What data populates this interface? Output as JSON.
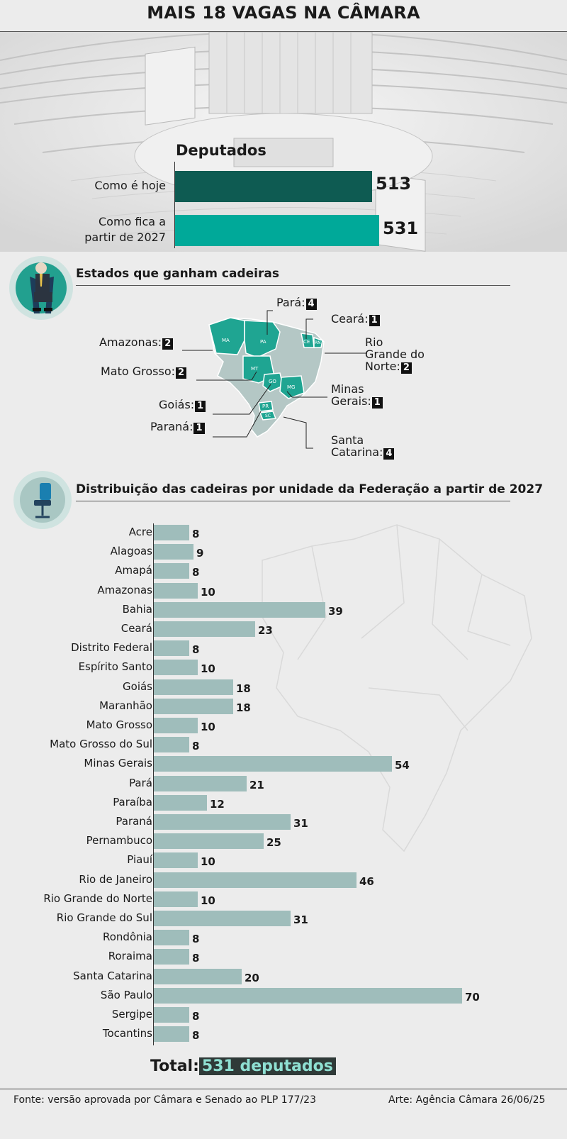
{
  "header": {
    "title": "MAIS 18 VAGAS NA CÂMARA"
  },
  "summary": {
    "heading": "Deputados",
    "rows": [
      {
        "label": "Como é hoje",
        "value": 513,
        "color": "#0e5b52"
      },
      {
        "label": "Como fica a partir de 2027",
        "label_line1": "Como fica a",
        "label_line2": "partir de 2027",
        "value": 531,
        "color": "#00a999"
      }
    ]
  },
  "gains": {
    "title": "Estados que ganham cadeiras",
    "accent": "#1fa592",
    "items": [
      {
        "state": "Pará:",
        "gain": "4"
      },
      {
        "state": "Ceará:",
        "gain": "1"
      },
      {
        "state": "Amazonas:",
        "gain": "2"
      },
      {
        "state_line1": "Rio",
        "state_line2": "Grande do",
        "state_line3": "Norte:",
        "gain": "2"
      },
      {
        "state": "Mato Grosso:",
        "gain": "2"
      },
      {
        "state_line1": "Minas",
        "state_line2": "Gerais:",
        "gain": "1"
      },
      {
        "state": "Goiás:",
        "gain": "1"
      },
      {
        "state": "Paraná:",
        "gain": "1"
      },
      {
        "state_line1": "Santa",
        "state_line2": "Catarina:",
        "gain": "4"
      }
    ],
    "map_abbrevs": [
      "MA",
      "PA",
      "CE",
      "RN",
      "MT",
      "GO",
      "MG",
      "PR",
      "SC"
    ]
  },
  "distribution": {
    "title": "Distribuição das cadeiras por unidade da Federação a partir de 2027"
  },
  "chart_data": {
    "type": "bar",
    "orientation": "horizontal",
    "title": "Distribuição das cadeiras por unidade da Federação a partir de 2027",
    "categories": [
      "Acre",
      "Alagoas",
      "Amapá",
      "Amazonas",
      "Bahia",
      "Ceará",
      "Distrito Federal",
      "Espírito Santo",
      "Goiás",
      "Maranhão",
      "Mato Grosso",
      "Mato Grosso do Sul",
      "Minas Gerais",
      "Pará",
      "Paraíba",
      "Paraná",
      "Pernambuco",
      "Piauí",
      "Rio de Janeiro",
      "Rio Grande do Norte",
      "Rio Grande do Sul",
      "Rondônia",
      "Roraima",
      "Santa Catarina",
      "São Paulo",
      "Sergipe",
      "Tocantins"
    ],
    "values": [
      8,
      9,
      8,
      10,
      39,
      23,
      8,
      10,
      18,
      18,
      10,
      8,
      54,
      21,
      12,
      31,
      25,
      10,
      46,
      10,
      31,
      8,
      8,
      20,
      70,
      8,
      8
    ],
    "xlim": [
      0,
      70
    ],
    "bar_color": "#9fbdbb"
  },
  "total": {
    "label": "Total:",
    "value": "531 deputados"
  },
  "footer": {
    "source": "Fonte: versão aprovada por Câmara e Senado ao PLP 177/23",
    "credit": "Arte: Agência Câmara 26/06/25"
  }
}
